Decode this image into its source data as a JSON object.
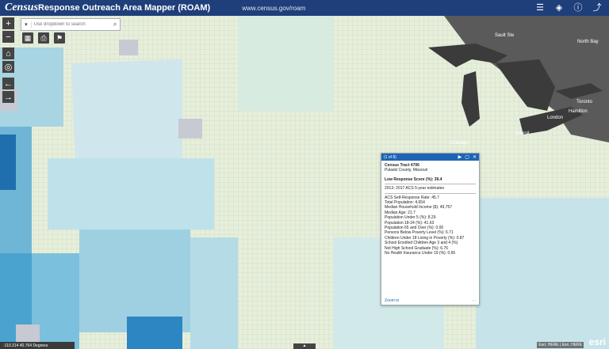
{
  "header": {
    "logo": "Census",
    "title": "Response Outreach Area Mapper (ROAM)",
    "url": "www.census.gov/roam",
    "icons": [
      "list-icon",
      "layers-icon",
      "info-icon",
      "share-icon"
    ]
  },
  "search": {
    "placeholder": "Use dropdown to search",
    "dropdown_glyph": "▾",
    "icon": "search-icon"
  },
  "map_labels": {
    "sault_ste": "Sault Ste",
    "north_bay": "North Bay",
    "toronto": "Toronto",
    "hamilton": "Hamilton",
    "london": "London",
    "chicago": "Chicago",
    "detroit": "Detroit"
  },
  "popup": {
    "counter": "(1 of 8)",
    "tract": "Census Tract 4706",
    "county": "Pulaski County, Missouri",
    "low_response": "Low Response Score (%): 36.4",
    "section": "2013- 2017 ACS 5-year estimates",
    "stats": [
      "ACS Self-Response Rate: 45.7",
      "Total Population: 4,654",
      "Median Household Income ($): 49,757",
      "Median Age: 21.7",
      "Population Under 5 (%): 8.29",
      "Population 18-24 (%): 41.63",
      "Population 65 and Over (%): 0.00",
      "Persons Below Poverty Level (%): 6.71",
      "Children Under 18 Living in Poverty (%): 0.87",
      "School Enrolled Children Age 3 and 4 (%)",
      "Not High School Graduate (%): 6.76",
      "No Health Insurance Under 19 (%): 0.66"
    ],
    "zoom_link": "Zoom to",
    "more": "···"
  },
  "status": {
    "coords": "-110.314 40.764 Degrees",
    "attribution": "Esri, HERE | Esri, HERE",
    "esri": "esri"
  },
  "colors": {
    "header": "#1f3f7a",
    "popup_header": "#1f64b4",
    "lake": "#3b3b3b",
    "canada": "#555555"
  }
}
